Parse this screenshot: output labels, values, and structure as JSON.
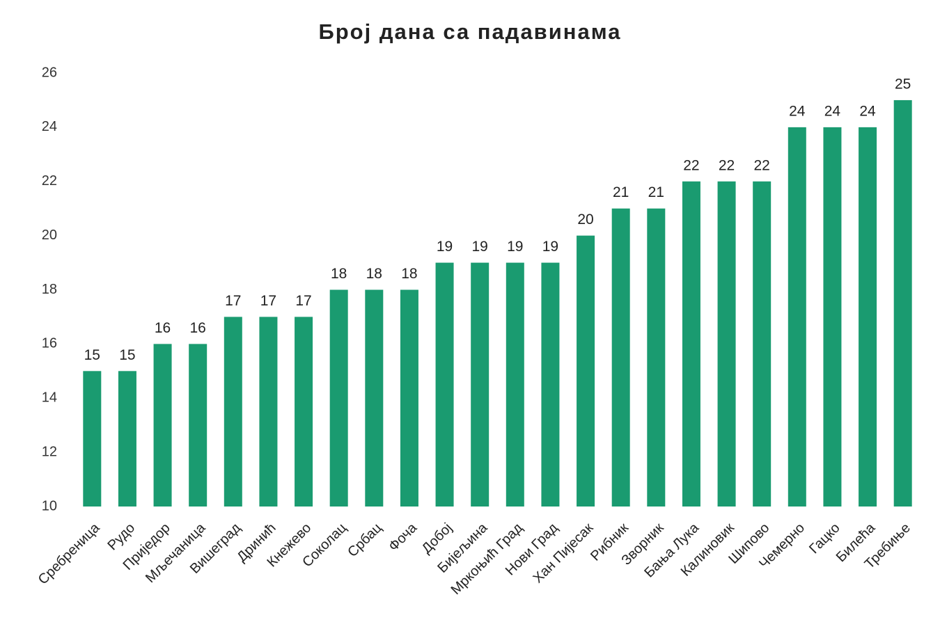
{
  "chart_data": {
    "type": "bar",
    "title": "Број дана са падавинама",
    "categories": [
      "Сребреница",
      "Рудо",
      "Приједор",
      "Мљечаница",
      "Вишеград",
      "Дринић",
      "Кнежево",
      "Соколац",
      "Србац",
      "Фоча",
      "Добој",
      "Бијељина",
      "Мркоњић Град",
      "Нови Град",
      "Хан Пијесак",
      "Рибник",
      "Зворник",
      "Бања Лука",
      "Калиновик",
      "Шипово",
      "Чемерно",
      "Гацко",
      "Билећа",
      "Требиње"
    ],
    "values": [
      15,
      15,
      16,
      16,
      17,
      17,
      17,
      18,
      18,
      18,
      19,
      19,
      19,
      19,
      20,
      21,
      21,
      22,
      22,
      22,
      24,
      24,
      24,
      25
    ],
    "color": "#1a9b70",
    "ylim": [
      10,
      26
    ],
    "yticks": [
      10,
      12,
      14,
      16,
      18,
      20,
      22,
      24,
      26
    ],
    "grid": false
  }
}
